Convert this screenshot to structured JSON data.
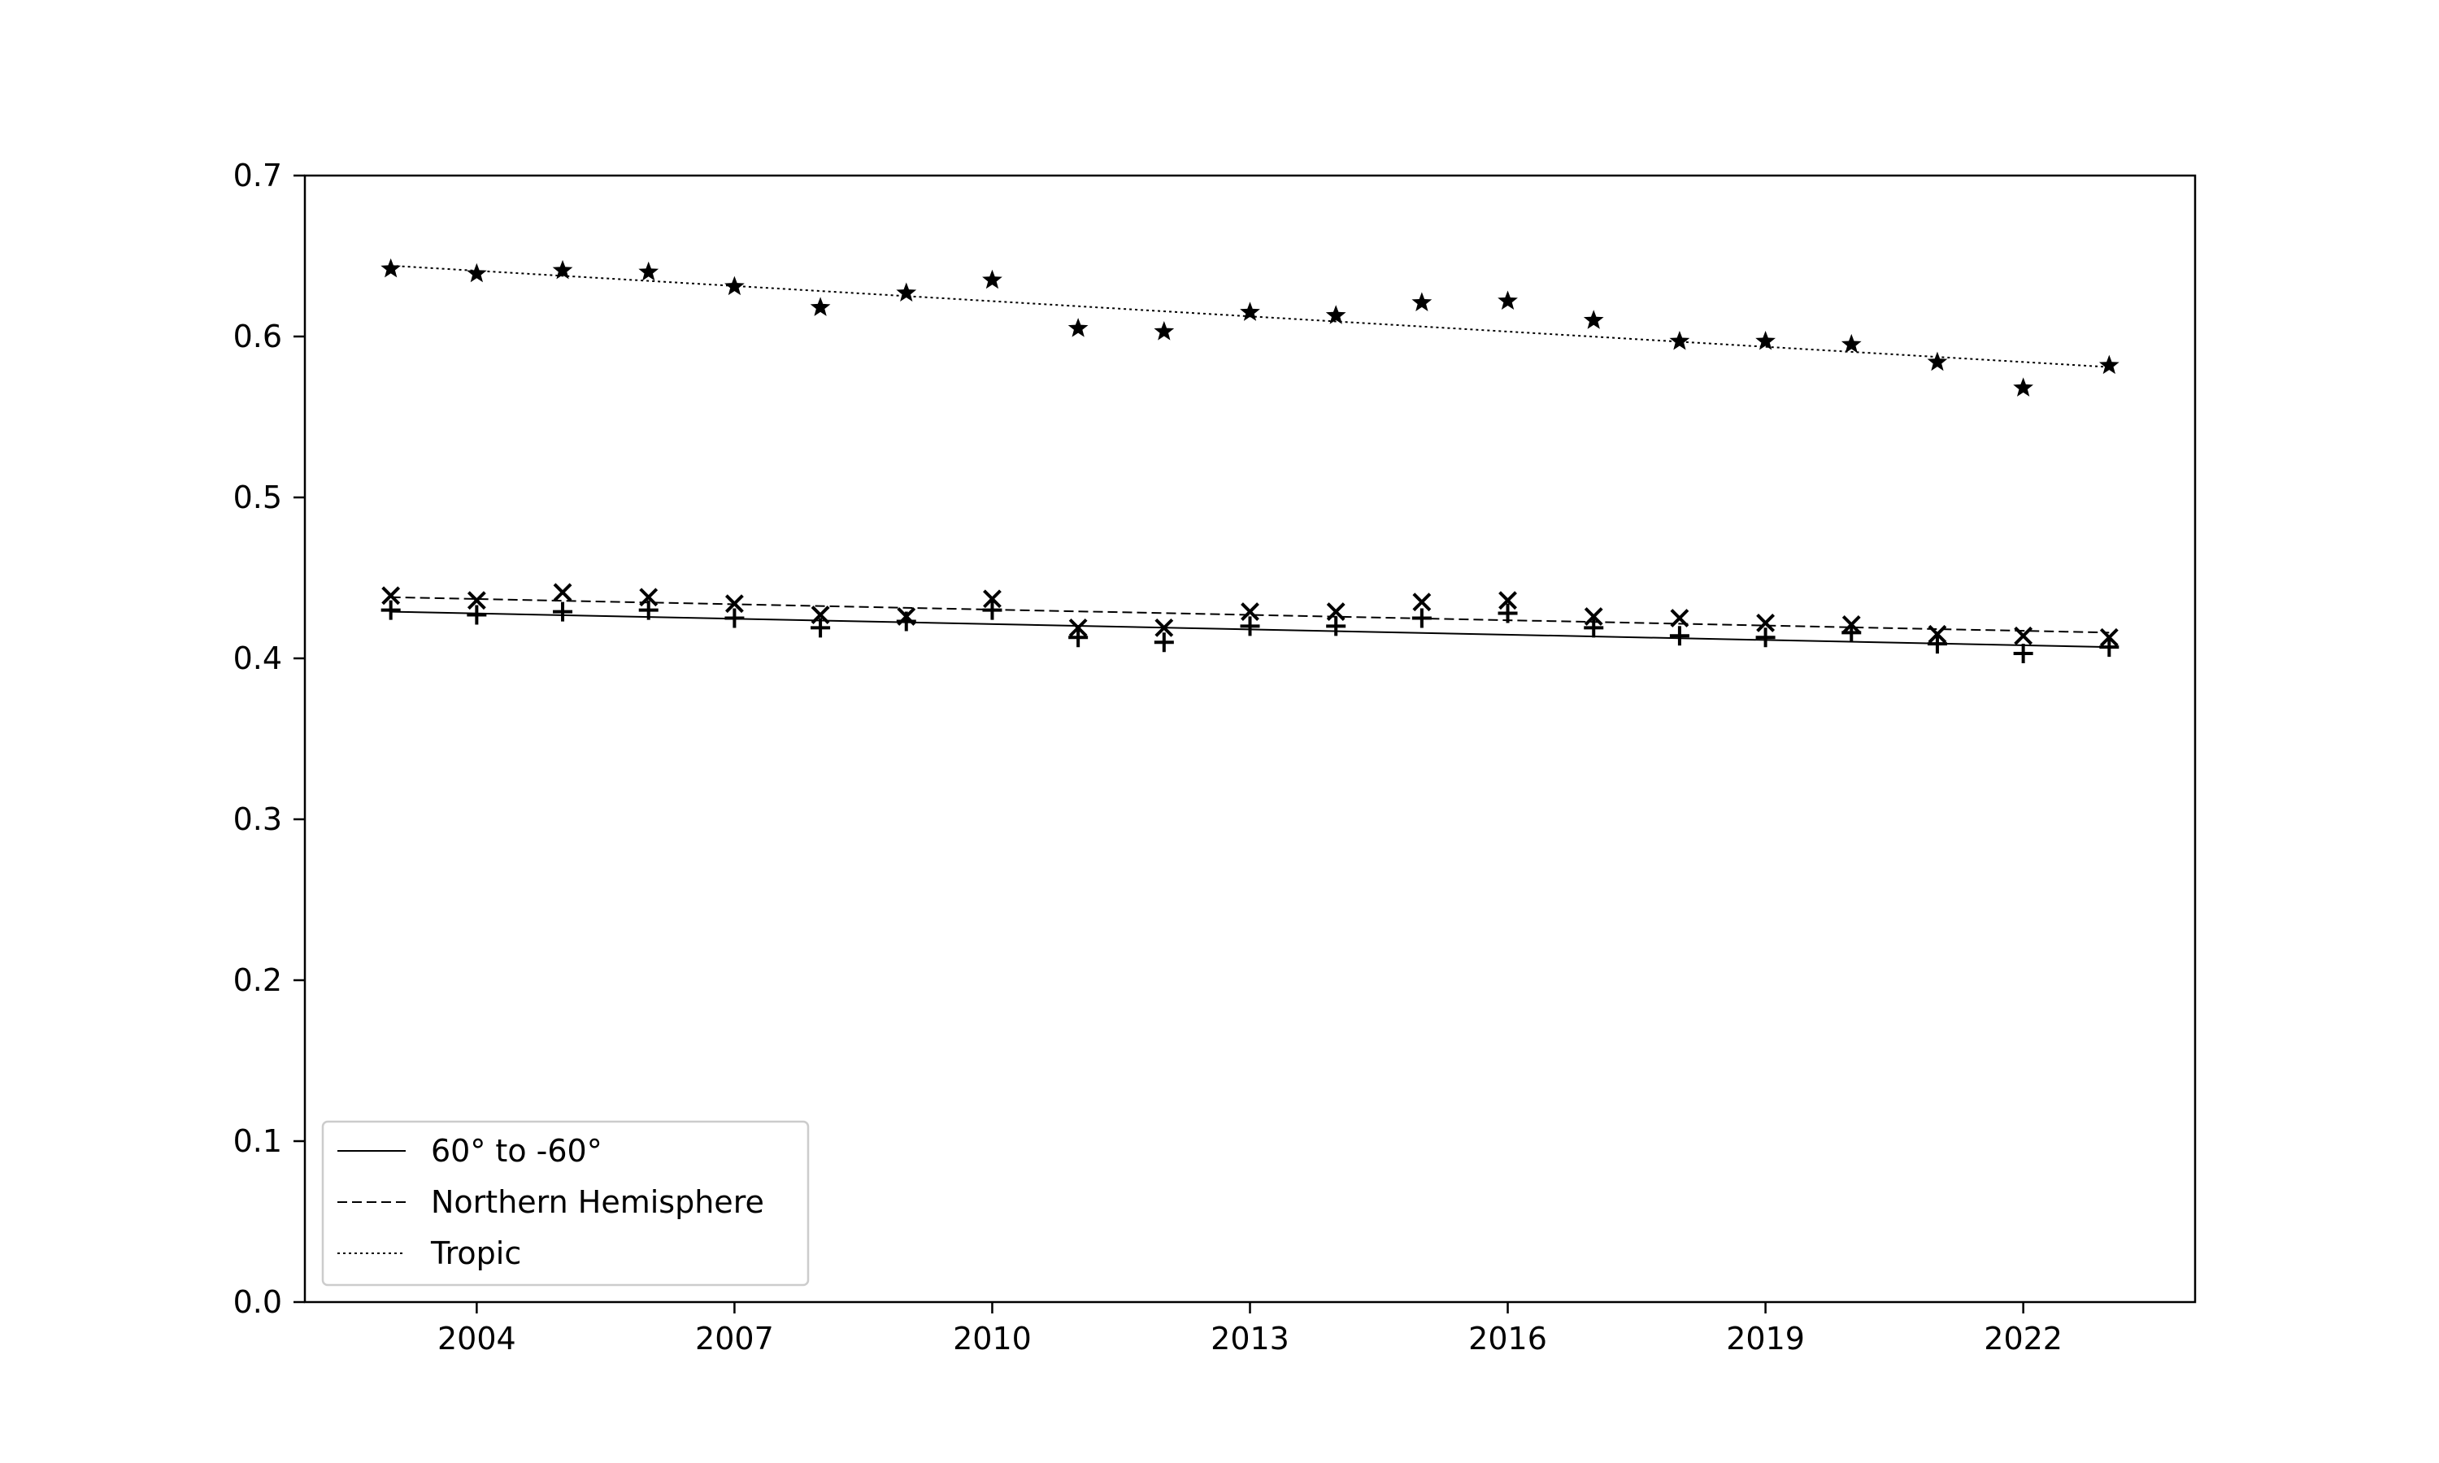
{
  "chart_data": {
    "type": "scatter",
    "title": "",
    "xlabel": "",
    "ylabel": "",
    "xlim": [
      2002,
      2024
    ],
    "ylim": [
      0.0,
      0.7
    ],
    "xticks": [
      2004,
      2007,
      2010,
      2013,
      2016,
      2019,
      2022
    ],
    "yticks": [
      0.0,
      0.1,
      0.2,
      0.3,
      0.4,
      0.5,
      0.6,
      0.7
    ],
    "ytick_labels": [
      "0.0",
      "0.1",
      "0.2",
      "0.3",
      "0.4",
      "0.5",
      "0.6",
      "0.7"
    ],
    "grid": false,
    "legend_position": "lower-left",
    "x": [
      2003,
      2004,
      2005,
      2006,
      2007,
      2008,
      2009,
      2010,
      2011,
      2012,
      2013,
      2014,
      2015,
      2016,
      2017,
      2018,
      2019,
      2020,
      2021,
      2022,
      2023
    ],
    "series": [
      {
        "name": "60° to -60°",
        "marker": "plus",
        "line_style": "solid",
        "color": "#000000",
        "values": [
          0.43,
          0.427,
          0.429,
          0.43,
          0.425,
          0.419,
          0.423,
          0.43,
          0.413,
          0.41,
          0.42,
          0.42,
          0.425,
          0.428,
          0.419,
          0.414,
          0.413,
          0.416,
          0.409,
          0.403,
          0.407
        ],
        "trend": [
          0.429,
          0.407
        ]
      },
      {
        "name": "Northern Hemisphere",
        "marker": "x",
        "line_style": "dashed",
        "color": "#000000",
        "values": [
          0.439,
          0.436,
          0.441,
          0.438,
          0.434,
          0.427,
          0.426,
          0.437,
          0.419,
          0.419,
          0.429,
          0.429,
          0.435,
          0.436,
          0.426,
          0.425,
          0.422,
          0.421,
          0.415,
          0.414,
          0.413
        ],
        "trend": [
          0.438,
          0.416
        ]
      },
      {
        "name": "Tropic",
        "marker": "star",
        "line_style": "dotted",
        "color": "#000000",
        "values": [
          0.642,
          0.639,
          0.641,
          0.64,
          0.631,
          0.618,
          0.627,
          0.635,
          0.605,
          0.603,
          0.615,
          0.613,
          0.621,
          0.622,
          0.61,
          0.597,
          0.597,
          0.595,
          0.584,
          0.568,
          0.582
        ],
        "trend": [
          0.644,
          0.581
        ]
      }
    ]
  }
}
